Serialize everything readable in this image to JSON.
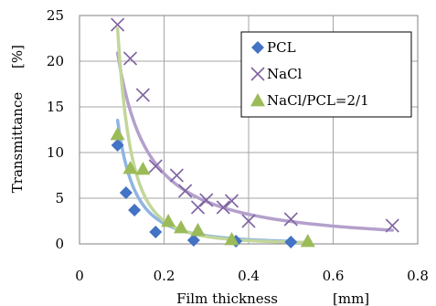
{
  "chart_data": {
    "type": "scatter",
    "title": "",
    "xlabel": "Film thickness",
    "xunit": "[mm]",
    "ylabel": "Transmittance",
    "yunit": "[%]",
    "xlim": [
      0,
      0.8
    ],
    "ylim": [
      0,
      25
    ],
    "xticks": [
      0,
      0.2,
      0.4,
      0.6,
      0.8
    ],
    "xtick_labels": [
      "0",
      "0.2",
      "0.4",
      "0.6",
      "0.8"
    ],
    "yticks": [
      0,
      5,
      10,
      15,
      20,
      25
    ],
    "ytick_labels": [
      "0",
      "5",
      "10",
      "15",
      "20",
      "25"
    ],
    "grid": true,
    "legend_position": "top-right",
    "series": [
      {
        "name": "PCL",
        "marker": "diamond",
        "color": "#4472C4",
        "trend_color": "#8FB4E3",
        "points": [
          [
            0.09,
            10.8
          ],
          [
            0.11,
            5.6
          ],
          [
            0.13,
            3.7
          ],
          [
            0.18,
            1.3
          ],
          [
            0.27,
            0.4
          ],
          [
            0.37,
            0.3
          ],
          [
            0.5,
            0.2
          ]
        ],
        "trend": {
          "a": 0.06,
          "b": -2.25
        }
      },
      {
        "name": "NaCl",
        "marker": "x",
        "color": "#8064A2",
        "trend_color": "#B4A0CC",
        "points": [
          [
            0.09,
            24.0
          ],
          [
            0.12,
            20.3
          ],
          [
            0.15,
            16.3
          ],
          [
            0.18,
            8.5
          ],
          [
            0.23,
            7.5
          ],
          [
            0.25,
            5.8
          ],
          [
            0.28,
            4.0
          ],
          [
            0.3,
            4.8
          ],
          [
            0.34,
            4.0
          ],
          [
            0.36,
            4.7
          ],
          [
            0.4,
            2.5
          ],
          [
            0.5,
            2.7
          ],
          [
            0.74,
            2.0
          ]
        ],
        "trend": {
          "a": 1.03,
          "b": -1.25
        }
      },
      {
        "name": "NaCl/PCL=2/1",
        "marker": "triangle",
        "color": "#9BBB59",
        "trend_color": "#C3D69B",
        "points": [
          [
            0.09,
            12.0
          ],
          [
            0.12,
            8.3
          ],
          [
            0.15,
            8.2
          ],
          [
            0.21,
            2.5
          ],
          [
            0.24,
            1.8
          ],
          [
            0.28,
            1.5
          ],
          [
            0.36,
            0.5
          ],
          [
            0.54,
            0.3
          ]
        ],
        "trend": {
          "a": 0.0278,
          "b": -2.8
        }
      }
    ]
  }
}
